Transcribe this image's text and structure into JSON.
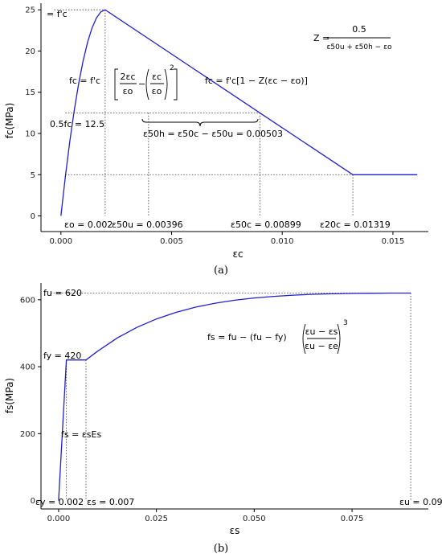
{
  "chart_data": [
    {
      "type": "line",
      "panel_label": "(a)",
      "xlabel": "εc",
      "ylabel": "fc(MPa)",
      "xlim": [
        -0.0009,
        0.0166
      ],
      "ylim": [
        -1.9,
        25.8
      ],
      "x_ticks": [
        0.0,
        0.005,
        0.01,
        0.015
      ],
      "x_tick_labels": [
        "0.000",
        "0.005",
        "0.010",
        "0.015"
      ],
      "y_ticks": [
        0,
        5,
        10,
        15,
        20,
        25
      ],
      "y_tick_labels": [
        "0",
        "5",
        "10",
        "15",
        "20",
        "25"
      ],
      "grid": false,
      "line_color": "#1f1fd1",
      "series": [
        {
          "x": [
            0,
            0.0002,
            0.0004,
            0.0006,
            0.0008,
            0.001,
            0.0012,
            0.0014,
            0.0016,
            0.0018,
            0.002,
            0.00899,
            0.01319,
            0.0161
          ],
          "y": [
            0,
            4.75,
            9.0,
            12.75,
            16.0,
            18.75,
            21.0,
            22.75,
            24.0,
            24.75,
            25.0,
            12.5,
            5.0,
            5.0
          ]
        }
      ],
      "annotations": {
        "fc_peak": "= f'c",
        "half_fc": "0.5fc = 12.5",
        "eps_o": "εo = 0.002",
        "eps_50u": "ε50u = 0.00396",
        "eps_50c": "ε50c = 0.00899",
        "eps_20c": "ε20c = 0.01319",
        "eps_50h": "ε50h = ε50c − ε50u = 0.00503",
        "z_lhs": "Z =",
        "z_num": "0.5",
        "z_den": "ε50u + ε50h − εo",
        "eq_rise_lhs": "fc = f'c",
        "eq_rise_a": "2εc",
        "eq_rise_b": "εo",
        "eq_rise_c": "εc",
        "eq_rise_d": "εo",
        "eq_fall": "fc = f'c[1 − Z(εc − εo)]"
      }
    },
    {
      "type": "line",
      "panel_label": "(b)",
      "xlabel": "εs",
      "ylabel": "fs(MPa)",
      "xlim": [
        -0.0045,
        0.0945
      ],
      "ylim": [
        -25,
        650
      ],
      "x_ticks": [
        0.0,
        0.025,
        0.05,
        0.075
      ],
      "x_tick_labels": [
        "0.000",
        "0.025",
        "0.050",
        "0.075"
      ],
      "y_ticks": [
        0,
        200,
        400,
        600
      ],
      "y_tick_labels": [
        "0",
        "200",
        "400",
        "600"
      ],
      "grid": false,
      "line_color": "#1f1fd1",
      "series": [
        {
          "x": [
            0,
            0.002,
            0.007,
            0.01,
            0.015,
            0.02,
            0.025,
            0.03,
            0.035,
            0.04,
            0.045,
            0.05,
            0.055,
            0.06,
            0.065,
            0.07,
            0.075,
            0.08,
            0.085,
            0.09
          ],
          "y": [
            0,
            420,
            420,
            446.6,
            485.9,
            517.5,
            542.6,
            562.4,
            577.9,
            589.8,
            598.7,
            605.3,
            610.2,
            613.8,
            616.3,
            617.9,
            618.9,
            619.5,
            619.9,
            620
          ]
        }
      ],
      "annotations": {
        "fu": "fu = 620",
        "fy": "fy = 420",
        "eps_y": "εy = 0.002",
        "eps_s": "εs = 0.007",
        "eps_u": "εu = 0.09",
        "eq_elastic": "fs = εsEs",
        "eq_hard_lhs": "fs = fu − (fu − fy)",
        "eq_hard_num": "εu − εs",
        "eq_hard_den": "εu − εe",
        "eq_hard_exp": "3"
      }
    }
  ]
}
